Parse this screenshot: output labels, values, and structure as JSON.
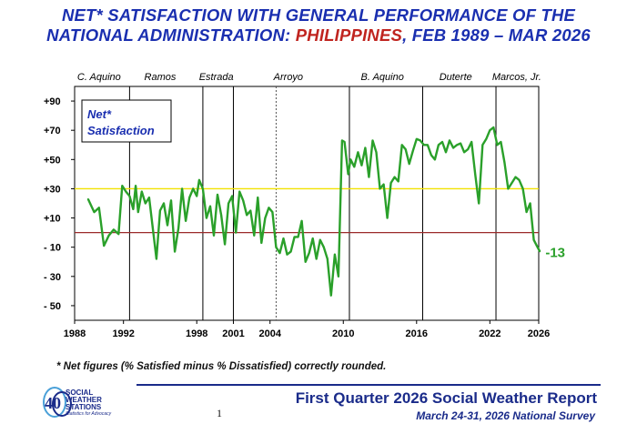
{
  "title": {
    "line1": "NET* SATISFACTION WITH GENERAL PERFORMANCE OF THE",
    "line2_prefix": "NATIONAL ADMINISTRATION: ",
    "line2_highlight": "PHILIPPINES",
    "line2_suffix": ", FEB 1989 – MAR 2026"
  },
  "footnote": "* Net figures (% Satisfied minus % Dissatisfied) correctly rounded.",
  "report": {
    "title": "First Quarter 2026 Social Weather Report",
    "subtitle": "March 24-31, 2026 National Survey",
    "page": "1"
  },
  "logo": {
    "text_line1": "SOCIAL",
    "text_line2": "WEATHER",
    "text_line3": "STATIONS",
    "tagline": "Statistics for Advocacy",
    "number": "40"
  },
  "colors": {
    "title": "#1a2fb0",
    "highlight": "#c0241f",
    "series": "#2aa02a",
    "yellow_line": "#f2e200",
    "red_line": "#9b2b2b",
    "label_blue": "#1a2fb0"
  },
  "chart_data": {
    "type": "line",
    "legend_box": [
      "Net*",
      "Satisfaction"
    ],
    "ylim": [
      -60,
      100
    ],
    "xlim": [
      1988,
      2026
    ],
    "y_ticks": [
      -50,
      -30,
      -10,
      10,
      30,
      50,
      70,
      90
    ],
    "y_tick_labels": [
      "- 50",
      "- 30",
      "- 10",
      "+10",
      "+30",
      "+50",
      "+70",
      "+90"
    ],
    "x_ticks": [
      1988,
      1992,
      1998,
      2001,
      2004,
      2010,
      2016,
      2022,
      2026
    ],
    "x_tick_labels": [
      "1988",
      "1992",
      "1998",
      "2001",
      "2004",
      "2010",
      "2016",
      "2022",
      "2026"
    ],
    "reference_lines": [
      {
        "y": 30,
        "color": "#f2e200"
      },
      {
        "y": 0,
        "color": "#9b2b2b"
      }
    ],
    "term_dividers": [
      1992.5,
      1998.5,
      2001.0
    ],
    "term_dividers_dashed": [
      2004.5
    ],
    "term_dividers_solid_late": [
      2010.5,
      2016.5,
      2022.5
    ],
    "administrations": [
      {
        "name": "C. Aquino",
        "x": 1990.0
      },
      {
        "name": "Ramos",
        "x": 1995.0
      },
      {
        "name": "Estrada",
        "x": 1999.6
      },
      {
        "name": "Arroyo",
        "x": 2005.5
      },
      {
        "name": "B. Aquino",
        "x": 2013.2
      },
      {
        "name": "Duterte",
        "x": 2019.2
      },
      {
        "name": "Marcos, Jr.",
        "x": 2024.2
      }
    ],
    "final_label": "-13",
    "series": [
      {
        "x": [
          1989.1,
          1989.6,
          1990.0,
          1990.4,
          1990.8,
          1991.2,
          1991.6,
          1991.9,
          1992.2,
          1992.5,
          1992.8,
          1993.0,
          1993.2,
          1993.5,
          1993.8,
          1994.1,
          1994.4,
          1994.7,
          1995.0,
          1995.3,
          1995.6,
          1995.9,
          1996.2,
          1996.5,
          1996.8,
          1997.1,
          1997.4,
          1997.7,
          1998.0,
          1998.2,
          1998.5,
          1998.8,
          1999.1,
          1999.4,
          1999.7,
          2000.0,
          2000.3,
          2000.6,
          2000.9,
          2001.2,
          2001.5,
          2001.8,
          2002.1,
          2002.4,
          2002.7,
          2003.0,
          2003.3,
          2003.6,
          2003.9,
          2004.2,
          2004.5,
          2004.8,
          2005.1,
          2005.4,
          2005.7,
          2006.0,
          2006.3,
          2006.6,
          2006.9,
          2007.2,
          2007.5,
          2007.8,
          2008.1,
          2008.4,
          2008.7,
          2009.0,
          2009.3,
          2009.6,
          2009.9,
          2010.1,
          2010.4,
          2010.6,
          2010.9,
          2011.2,
          2011.5,
          2011.8,
          2012.1,
          2012.4,
          2012.7,
          2013.0,
          2013.3,
          2013.6,
          2013.9,
          2014.2,
          2014.5,
          2014.8,
          2015.1,
          2015.4,
          2015.7,
          2016.0,
          2016.3,
          2016.6,
          2016.9,
          2017.2,
          2017.5,
          2017.8,
          2018.1,
          2018.4,
          2018.7,
          2019.0,
          2019.3,
          2019.6,
          2019.9,
          2020.2,
          2020.5,
          2020.8,
          2021.1,
          2021.4,
          2021.7,
          2022.0,
          2022.3,
          2022.6,
          2022.9,
          2023.2,
          2023.5,
          2023.8,
          2024.1,
          2024.4,
          2024.7,
          2025.0,
          2025.3,
          2025.6,
          2025.9,
          2026.1
        ],
        "y": [
          23,
          14,
          17,
          -9,
          -2,
          2,
          -1,
          32,
          28,
          25,
          16,
          32,
          14,
          28,
          20,
          24,
          3,
          -18,
          15,
          20,
          5,
          22,
          -13,
          3,
          30,
          8,
          24,
          30,
          25,
          36,
          30,
          10,
          18,
          -2,
          26,
          12,
          -8,
          20,
          25,
          0,
          28,
          22,
          12,
          15,
          -2,
          24,
          -7,
          10,
          17,
          14,
          -10,
          -14,
          -4,
          -15,
          -13,
          -3,
          -3,
          8,
          -20,
          -14,
          -4,
          -18,
          -5,
          -10,
          -18,
          -43,
          -15,
          -30,
          63,
          62,
          40,
          50,
          45,
          55,
          46,
          58,
          38,
          63,
          55,
          30,
          33,
          10,
          34,
          38,
          35,
          60,
          57,
          47,
          56,
          64,
          63,
          60,
          60,
          53,
          50,
          60,
          62,
          55,
          63,
          58,
          60,
          61,
          55,
          57,
          62,
          40,
          20,
          60,
          64,
          70,
          72,
          60,
          62,
          48,
          30,
          34,
          38,
          36,
          30,
          14,
          20,
          -5,
          -10,
          -13
        ]
      }
    ]
  }
}
